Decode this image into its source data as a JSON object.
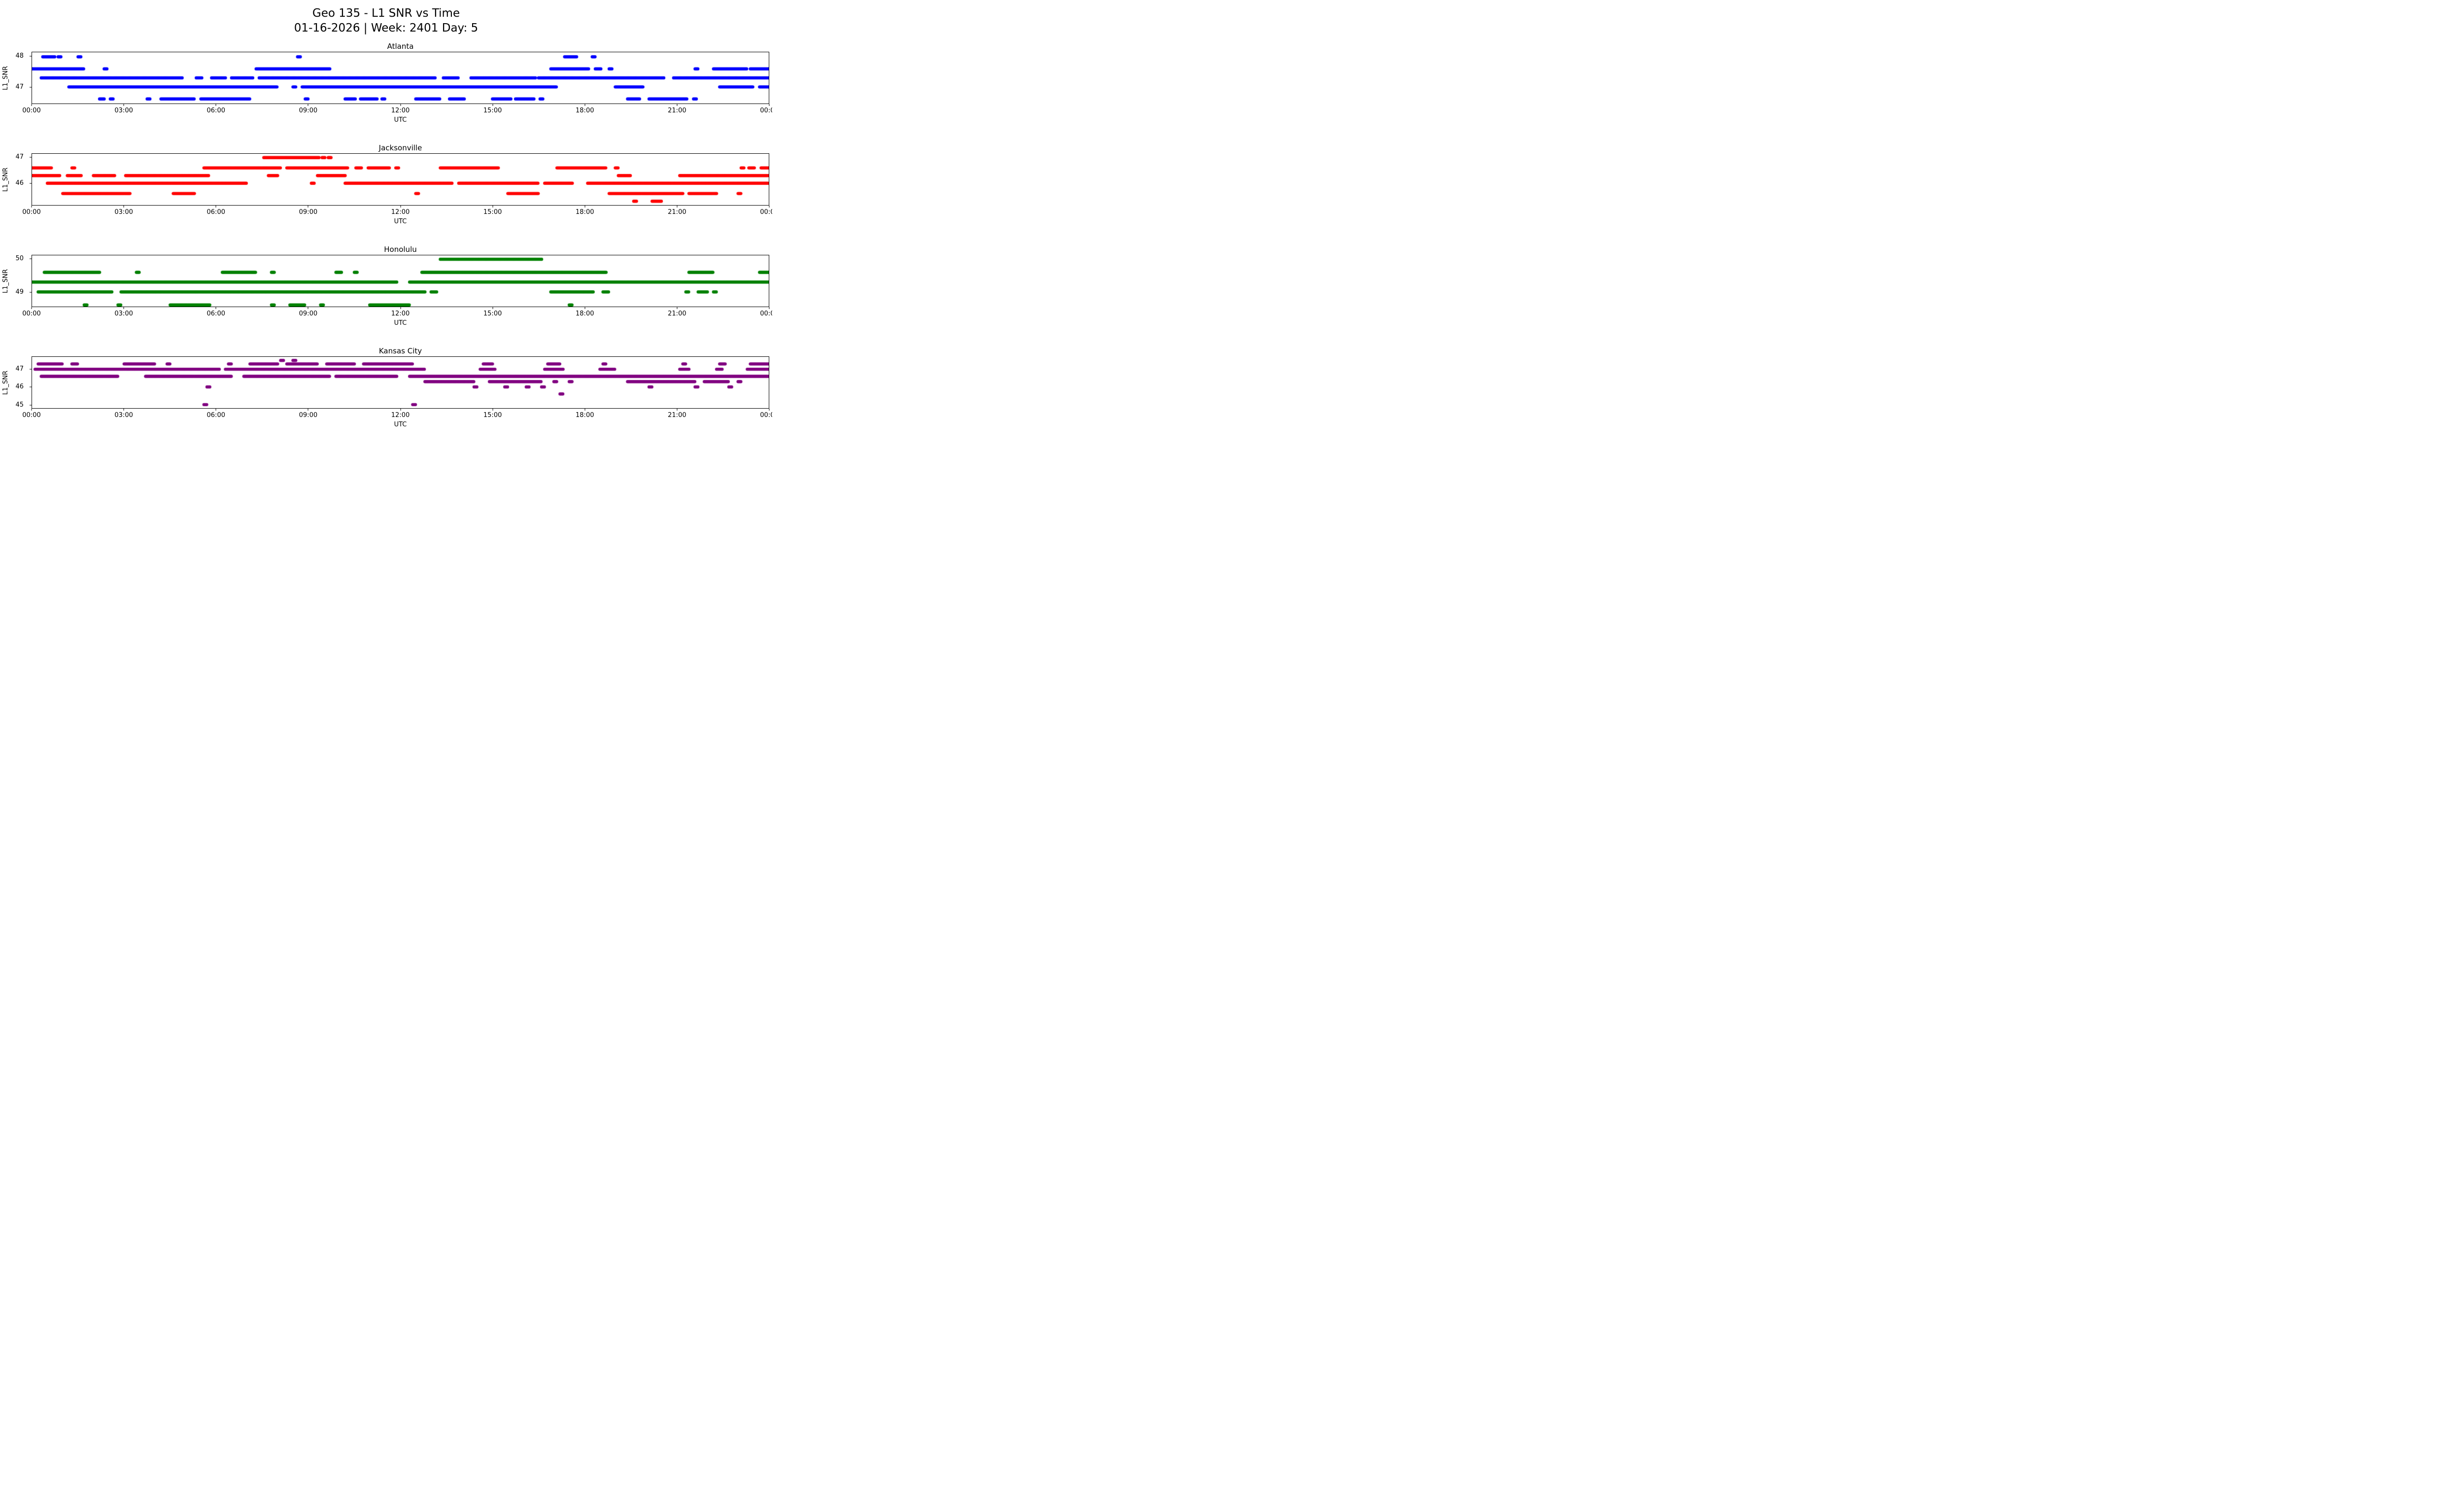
{
  "chart_data": {
    "type": "scatter",
    "title": "Geo 135 - L1 SNR vs Time",
    "subtitle": "01-16-2026 | Week: 2401 Day: 5",
    "xlabel": "UTC",
    "ylabel": "L1_SNR",
    "x_ticks": [
      "00:00",
      "03:00",
      "06:00",
      "09:00",
      "12:00",
      "15:00",
      "18:00",
      "21:00",
      "00:00"
    ],
    "x_range_hours": [
      0,
      24
    ],
    "grid": false,
    "legend": "none",
    "subplots": [
      {
        "name": "Atlanta",
        "color": "#0000ff",
        "ylim": [
          46.45,
          48.15
        ],
        "yticks": [
          47,
          48
        ],
        "levels": [
          {
            "snr": 48.0,
            "segments": [
              [
                0.35,
                0.75
              ],
              [
                0.85,
                0.95
              ],
              [
                1.5,
                1.6
              ],
              [
                8.65,
                8.75
              ],
              [
                17.35,
                17.75
              ],
              [
                18.25,
                18.35
              ]
            ]
          },
          {
            "snr": 47.6,
            "segments": [
              [
                0.0,
                1.7
              ],
              [
                2.35,
                2.45
              ],
              [
                7.3,
                9.7
              ],
              [
                16.9,
                18.15
              ],
              [
                18.35,
                18.55
              ],
              [
                18.8,
                18.9
              ],
              [
                21.6,
                21.7
              ],
              [
                22.2,
                23.3
              ],
              [
                23.4,
                24.0
              ]
            ]
          },
          {
            "snr": 47.3,
            "segments": [
              [
                0.3,
                4.9
              ],
              [
                5.35,
                5.55
              ],
              [
                5.85,
                6.3
              ],
              [
                6.5,
                7.2
              ],
              [
                7.4,
                13.15
              ],
              [
                13.4,
                13.9
              ],
              [
                14.3,
                16.4
              ],
              [
                16.5,
                20.6
              ],
              [
                20.9,
                24.0
              ]
            ]
          },
          {
            "snr": 47.0,
            "segments": [
              [
                1.2,
                8.0
              ],
              [
                8.5,
                8.6
              ],
              [
                8.8,
                17.1
              ],
              [
                19.0,
                19.9
              ],
              [
                22.4,
                23.5
              ],
              [
                23.7,
                24.0
              ]
            ]
          },
          {
            "snr": 46.6,
            "segments": [
              [
                2.2,
                2.35
              ],
              [
                2.55,
                2.65
              ],
              [
                3.75,
                3.85
              ],
              [
                4.2,
                5.3
              ],
              [
                5.5,
                7.1
              ],
              [
                8.9,
                9.0
              ],
              [
                10.2,
                10.55
              ],
              [
                10.7,
                11.25
              ],
              [
                11.4,
                11.5
              ],
              [
                12.5,
                13.3
              ],
              [
                13.6,
                14.1
              ],
              [
                15.0,
                15.6
              ],
              [
                15.75,
                16.35
              ],
              [
                16.55,
                16.65
              ],
              [
                19.4,
                19.8
              ],
              [
                20.1,
                21.35
              ],
              [
                21.55,
                21.65
              ]
            ]
          }
        ]
      },
      {
        "name": "Jacksonville",
        "color": "#ff0000",
        "ylim": [
          45.15,
          47.15
        ],
        "yticks": [
          46,
          47
        ],
        "levels": [
          {
            "snr": 47.0,
            "segments": [
              [
                7.55,
                9.35
              ],
              [
                9.45,
                9.55
              ],
              [
                9.65,
                9.75
              ]
            ]
          },
          {
            "snr": 46.6,
            "segments": [
              [
                0.0,
                0.65
              ],
              [
                1.3,
                1.4
              ],
              [
                5.6,
                8.1
              ],
              [
                8.3,
                10.3
              ],
              [
                10.55,
                10.75
              ],
              [
                10.95,
                11.65
              ],
              [
                11.85,
                11.95
              ],
              [
                13.3,
                15.2
              ],
              [
                17.1,
                18.7
              ],
              [
                19.0,
                19.1
              ],
              [
                23.1,
                23.2
              ],
              [
                23.35,
                23.55
              ],
              [
                23.75,
                24.0
              ]
            ]
          },
          {
            "snr": 46.3,
            "segments": [
              [
                0.0,
                0.9
              ],
              [
                1.15,
                1.6
              ],
              [
                2.0,
                2.7
              ],
              [
                3.05,
                5.75
              ],
              [
                7.7,
                8.0
              ],
              [
                9.3,
                10.2
              ],
              [
                19.1,
                19.5
              ],
              [
                21.1,
                24.0
              ]
            ]
          },
          {
            "snr": 46.0,
            "segments": [
              [
                0.5,
                7.0
              ],
              [
                9.1,
                9.2
              ],
              [
                10.2,
                13.7
              ],
              [
                13.9,
                16.5
              ],
              [
                16.7,
                17.6
              ],
              [
                18.1,
                24.0
              ]
            ]
          },
          {
            "snr": 45.6,
            "segments": [
              [
                1.0,
                3.2
              ],
              [
                4.6,
                5.3
              ],
              [
                12.5,
                12.6
              ],
              [
                15.5,
                16.5
              ],
              [
                18.8,
                21.2
              ],
              [
                21.4,
                22.3
              ],
              [
                23.0,
                23.1
              ]
            ]
          },
          {
            "snr": 45.3,
            "segments": [
              [
                19.6,
                19.7
              ],
              [
                20.2,
                20.5
              ]
            ]
          }
        ]
      },
      {
        "name": "Honolulu",
        "color": "#008000",
        "ylim": [
          48.55,
          50.12
        ],
        "yticks": [
          49,
          50
        ],
        "levels": [
          {
            "snr": 50.0,
            "segments": [
              [
                13.3,
                16.6
              ]
            ]
          },
          {
            "snr": 49.6,
            "segments": [
              [
                0.4,
                2.2
              ],
              [
                3.4,
                3.5
              ],
              [
                6.2,
                7.3
              ],
              [
                7.8,
                7.9
              ],
              [
                9.9,
                10.1
              ],
              [
                10.5,
                10.6
              ],
              [
                12.7,
                18.7
              ],
              [
                21.4,
                22.2
              ],
              [
                23.7,
                24.0
              ]
            ]
          },
          {
            "snr": 49.3,
            "segments": [
              [
                0.0,
                11.9
              ],
              [
                12.3,
                24.0
              ]
            ]
          },
          {
            "snr": 49.0,
            "segments": [
              [
                0.2,
                2.6
              ],
              [
                2.9,
                12.8
              ],
              [
                13.0,
                13.2
              ],
              [
                16.9,
                18.3
              ],
              [
                18.6,
                18.8
              ],
              [
                21.3,
                21.4
              ],
              [
                21.7,
                22.0
              ],
              [
                22.2,
                22.3
              ]
            ]
          },
          {
            "snr": 48.6,
            "segments": [
              [
                1.7,
                1.8
              ],
              [
                2.8,
                2.9
              ],
              [
                4.5,
                5.8
              ],
              [
                7.8,
                7.9
              ],
              [
                8.4,
                8.9
              ],
              [
                9.4,
                9.5
              ],
              [
                11.0,
                12.3
              ],
              [
                17.5,
                17.6
              ]
            ]
          }
        ]
      },
      {
        "name": "Kansas City",
        "color": "#800080",
        "ylim": [
          44.8,
          47.7
        ],
        "yticks": [
          45,
          46,
          47
        ],
        "levels": [
          {
            "snr": 47.5,
            "segments": [
              [
                8.1,
                8.2
              ],
              [
                8.5,
                8.6
              ]
            ]
          },
          {
            "snr": 47.3,
            "segments": [
              [
                0.2,
                1.0
              ],
              [
                1.3,
                1.5
              ],
              [
                3.0,
                4.0
              ],
              [
                4.4,
                4.5
              ],
              [
                6.4,
                6.5
              ],
              [
                7.1,
                8.0
              ],
              [
                8.3,
                9.3
              ],
              [
                9.6,
                10.5
              ],
              [
                10.8,
                12.4
              ],
              [
                14.7,
                15.0
              ],
              [
                16.8,
                17.2
              ],
              [
                18.6,
                18.7
              ],
              [
                21.2,
                21.3
              ],
              [
                22.4,
                22.6
              ],
              [
                23.4,
                24.0
              ]
            ]
          },
          {
            "snr": 47.0,
            "segments": [
              [
                0.1,
                6.1
              ],
              [
                6.3,
                12.8
              ],
              [
                14.6,
                15.1
              ],
              [
                16.7,
                17.3
              ],
              [
                18.5,
                19.0
              ],
              [
                21.1,
                21.4
              ],
              [
                22.3,
                22.5
              ],
              [
                23.3,
                24.0
              ]
            ]
          },
          {
            "snr": 46.6,
            "segments": [
              [
                0.3,
                2.8
              ],
              [
                3.7,
                6.5
              ],
              [
                6.9,
                9.7
              ],
              [
                9.9,
                11.9
              ],
              [
                12.3,
                24.0
              ]
            ]
          },
          {
            "snr": 46.3,
            "segments": [
              [
                12.8,
                14.4
              ],
              [
                14.9,
                16.6
              ],
              [
                17.0,
                17.1
              ],
              [
                17.5,
                17.6
              ],
              [
                19.4,
                21.6
              ],
              [
                21.9,
                22.7
              ],
              [
                23.0,
                23.1
              ]
            ]
          },
          {
            "snr": 46.0,
            "segments": [
              [
                5.7,
                5.8
              ],
              [
                14.4,
                14.5
              ],
              [
                15.4,
                15.5
              ],
              [
                16.1,
                16.2
              ],
              [
                16.6,
                16.7
              ],
              [
                20.1,
                20.2
              ],
              [
                21.6,
                21.7
              ],
              [
                22.7,
                22.8
              ]
            ]
          },
          {
            "snr": 45.6,
            "segments": [
              [
                17.2,
                17.3
              ]
            ]
          },
          {
            "snr": 45.0,
            "segments": [
              [
                5.6,
                5.7
              ],
              [
                12.4,
                12.5
              ]
            ]
          }
        ]
      }
    ]
  }
}
